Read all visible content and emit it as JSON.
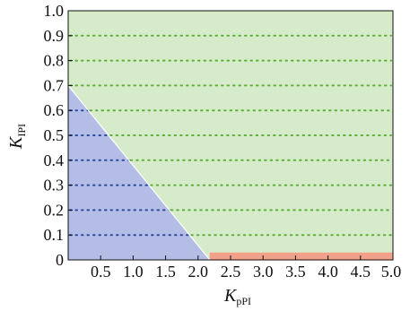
{
  "chart_data": {
    "type": "area",
    "xlim": [
      0,
      5.0
    ],
    "ylim": [
      0,
      1.0
    ],
    "x_ticks": [
      {
        "v": 0.5,
        "label": "0.5"
      },
      {
        "v": 1.0,
        "label": "1.0"
      },
      {
        "v": 1.5,
        "label": "1.5"
      },
      {
        "v": 2.0,
        "label": "2.0"
      },
      {
        "v": 2.5,
        "label": "2.5"
      },
      {
        "v": 3.0,
        "label": "3.0"
      },
      {
        "v": 3.5,
        "label": "3.5"
      },
      {
        "v": 4.0,
        "label": "4.0"
      },
      {
        "v": 4.5,
        "label": "4.5"
      },
      {
        "v": 5.0,
        "label": "5.0"
      }
    ],
    "y_ticks": [
      {
        "v": 0.0,
        "label": "0"
      },
      {
        "v": 0.1,
        "label": "0.1"
      },
      {
        "v": 0.2,
        "label": "0.2"
      },
      {
        "v": 0.3,
        "label": "0.3"
      },
      {
        "v": 0.4,
        "label": "0.4"
      },
      {
        "v": 0.5,
        "label": "0.5"
      },
      {
        "v": 0.6,
        "label": "0.6"
      },
      {
        "v": 0.7,
        "label": "0.7"
      },
      {
        "v": 0.8,
        "label": "0.8"
      },
      {
        "v": 0.9,
        "label": "0.9"
      },
      {
        "v": 1.0,
        "label": "1.0"
      }
    ],
    "xlabel": {
      "main": "K",
      "sub": "pPI"
    },
    "ylabel": {
      "main": "K",
      "sub": "IPI"
    },
    "grid": "horizontal-dotted",
    "regions": [
      {
        "color": "#d6ebc9",
        "polygon": [
          [
            0,
            0
          ],
          [
            5.0,
            0
          ],
          [
            5.0,
            1.0
          ],
          [
            0,
            1.0
          ]
        ]
      },
      {
        "color": "#b4bde6",
        "polygon": [
          [
            0,
            0
          ],
          [
            0,
            0.7
          ],
          [
            2.18,
            0
          ]
        ]
      },
      {
        "color": "#f2a08a",
        "polygon": [
          [
            2.18,
            0
          ],
          [
            5.0,
            0
          ],
          [
            5.0,
            0.03
          ],
          [
            2.18,
            0.03
          ]
        ]
      }
    ],
    "boundary_line": {
      "color": "#ffffff",
      "points": [
        [
          0,
          0.7
        ],
        [
          2.18,
          0
        ]
      ]
    },
    "colors": {
      "grid_on_green": "#5fae3c",
      "grid_on_blue": "#2c4a9e",
      "axis": "#111111"
    }
  }
}
